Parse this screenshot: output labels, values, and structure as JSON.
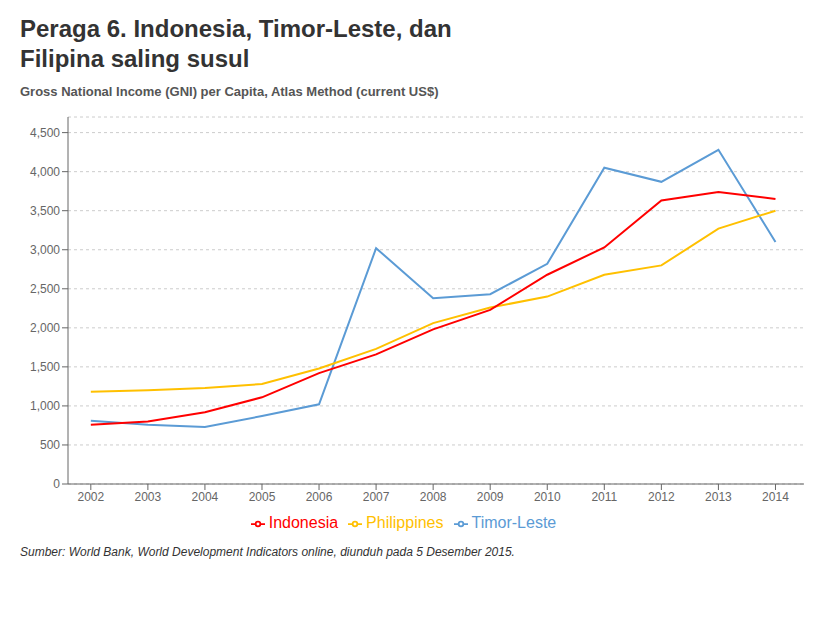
{
  "chart_data": {
    "type": "line",
    "title": "Peraga 6. Indonesia, Timor-Leste, dan\nFilipina saling susul",
    "subtitle": "Gross National Income (GNI) per Capita, Atlas Method (current US$)",
    "source": "Sumber: World Bank, World Development Indicators online, diunduh pada 5 Desember 2015.",
    "x": [
      2002,
      2003,
      2004,
      2005,
      2006,
      2007,
      2008,
      2009,
      2010,
      2011,
      2012,
      2013,
      2014
    ],
    "series": [
      {
        "name": "Timor-Leste",
        "color": "#5B9BD5",
        "values": [
          810,
          760,
          730,
          870,
          1020,
          3020,
          2380,
          2430,
          2820,
          4050,
          3870,
          4280,
          3100
        ]
      },
      {
        "name": "Philippines",
        "color": "#FFC000",
        "values": [
          1180,
          1200,
          1230,
          1280,
          1480,
          1730,
          2060,
          2260,
          2400,
          2680,
          2800,
          3270,
          3500
        ]
      },
      {
        "name": "Indonesia",
        "color": "#FF0000",
        "values": [
          760,
          800,
          920,
          1110,
          1420,
          1660,
          1980,
          2230,
          2680,
          3030,
          3630,
          3740,
          3650
        ]
      }
    ],
    "xlim": [
      2001.6,
      2014.5
    ],
    "xticks": [
      2002,
      2003,
      2004,
      2005,
      2006,
      2007,
      2008,
      2009,
      2010,
      2011,
      2012,
      2013,
      2014
    ],
    "ylim": [
      0,
      4700
    ],
    "yticks": [
      0,
      500,
      {
        "value": 1000,
        "label": "1,000"
      },
      {
        "value": 1500,
        "label": "1,500"
      },
      {
        "value": 2000,
        "label": "2,000"
      },
      {
        "value": 2500,
        "label": "2,500"
      },
      {
        "value": 3000,
        "label": "3,000"
      },
      {
        "value": 3500,
        "label": "3,500"
      },
      {
        "value": 4000,
        "label": "4,000"
      },
      {
        "value": 4500,
        "label": "4,500"
      }
    ],
    "grid": true,
    "legend": "bottom"
  }
}
